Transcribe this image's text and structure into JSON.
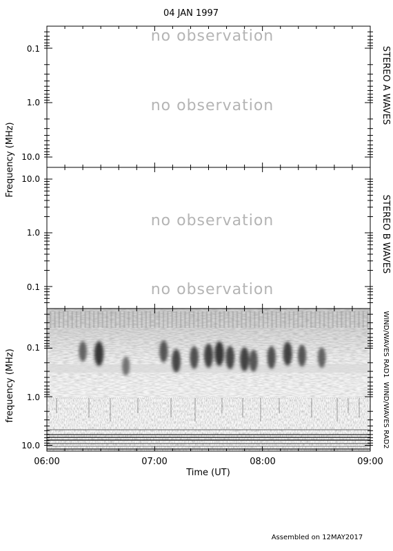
{
  "title": "04 JAN 1997",
  "footer": "Assembled on 12MAY2017",
  "xlabel": "Time (UT)",
  "ylabel_top": "Frequency (MHz)",
  "ylabel_bottom": "frequency (MHz)",
  "no_observation": "no observation",
  "panels": {
    "a": {
      "label": "STEREO A WAVES",
      "ticks": [
        "0.1",
        "1.0",
        "10.0"
      ]
    },
    "b": {
      "label": "STEREO B WAVES",
      "ticks": [
        "10.0",
        "1.0",
        "0.1"
      ]
    },
    "wind": {
      "label_rad1": "WIND/WAVES RAD1",
      "label_rad2": "WIND/WAVES RAD2",
      "ticks": [
        "0.1",
        "1.0",
        "10.0"
      ]
    }
  },
  "x_ticks": [
    "06:00",
    "07:00",
    "08:00",
    "09:00"
  ],
  "chart_data": [
    {
      "type": "heatmap",
      "name": "STEREO A WAVES",
      "y_scale": "log",
      "ylim": [
        12,
        0.04
      ],
      "x": [
        "06:00",
        "09:00"
      ],
      "status": "no observation"
    },
    {
      "type": "heatmap",
      "name": "STEREO B WAVES",
      "y_scale": "log",
      "ylim": [
        0.05,
        13
      ],
      "x": [
        "06:00",
        "09:00"
      ],
      "status": "no observation"
    },
    {
      "type": "heatmap",
      "name": "WIND/WAVES RAD1 + RAD2",
      "y_scale": "log",
      "ylim": [
        13,
        0.02
      ],
      "x": [
        "06:00",
        "09:00"
      ],
      "colorscale": "grayscale, dark = intense",
      "bursts": [
        {
          "time": "06:20",
          "freq_mhz": 0.09,
          "intensity": 0.6
        },
        {
          "time": "06:29",
          "freq_mhz": 0.1,
          "intensity": 0.9
        },
        {
          "time": "06:44",
          "freq_mhz": 0.18,
          "intensity": 0.5
        },
        {
          "time": "07:05",
          "freq_mhz": 0.09,
          "intensity": 0.7
        },
        {
          "time": "07:12",
          "freq_mhz": 0.14,
          "intensity": 0.8
        },
        {
          "time": "07:22",
          "freq_mhz": 0.12,
          "intensity": 0.75
        },
        {
          "time": "07:30",
          "freq_mhz": 0.11,
          "intensity": 0.85
        },
        {
          "time": "07:36",
          "freq_mhz": 0.1,
          "intensity": 0.9
        },
        {
          "time": "07:42",
          "freq_mhz": 0.12,
          "intensity": 0.8
        },
        {
          "time": "07:50",
          "freq_mhz": 0.13,
          "intensity": 0.85
        },
        {
          "time": "07:55",
          "freq_mhz": 0.14,
          "intensity": 0.7
        },
        {
          "time": "08:05",
          "freq_mhz": 0.12,
          "intensity": 0.75
        },
        {
          "time": "08:14",
          "freq_mhz": 0.1,
          "intensity": 0.85
        },
        {
          "time": "08:22",
          "freq_mhz": 0.11,
          "intensity": 0.7
        },
        {
          "time": "08:33",
          "freq_mhz": 0.12,
          "intensity": 0.6
        }
      ]
    }
  ]
}
